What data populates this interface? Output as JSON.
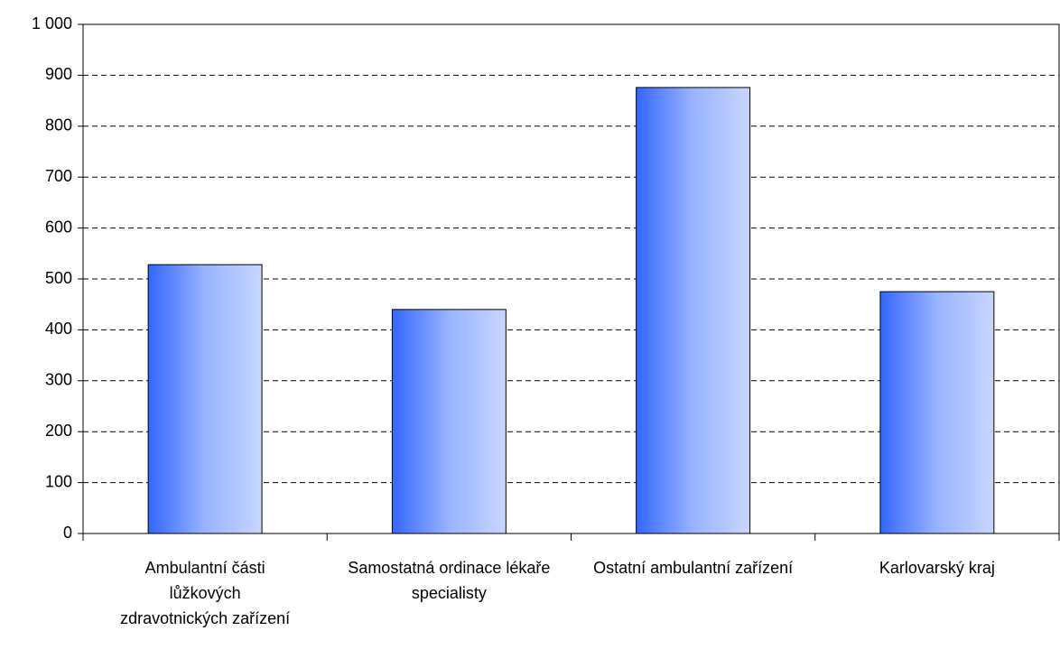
{
  "chart_data": {
    "type": "bar",
    "categories": [
      "Ambulantní části lůžkových zdravotnických zařízení",
      "Samostatná ordinace lékaře specialisty",
      "Ostatní ambulantní zařízení",
      "Karlovarský kraj"
    ],
    "values": [
      528,
      440,
      876,
      475
    ],
    "color": "#3366ff",
    "ylim": [
      0,
      1000
    ],
    "yticks": [
      0,
      100,
      200,
      300,
      400,
      500,
      600,
      700,
      800,
      900,
      {
        "value": 1000,
        "label": "1 000"
      }
    ],
    "grid": true
  }
}
